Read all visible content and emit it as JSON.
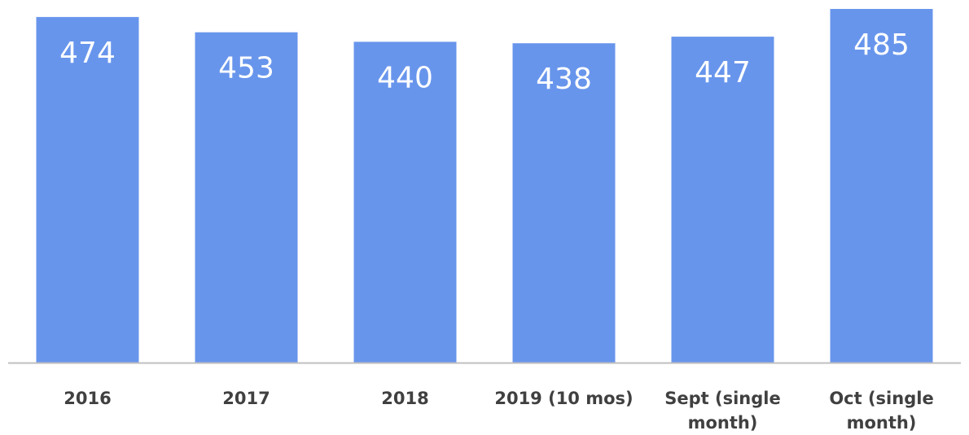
{
  "chart_data": {
    "type": "bar",
    "categories": [
      [
        "2016"
      ],
      [
        "2017"
      ],
      [
        "2018"
      ],
      [
        "2019 (10 mos)"
      ],
      [
        "Sept (single",
        "month)"
      ],
      [
        "Oct (single",
        "month)"
      ]
    ],
    "values": [
      474,
      453,
      440,
      438,
      447,
      485
    ],
    "data_labels": [
      "474",
      "453",
      "440",
      "438",
      "447",
      "485"
    ],
    "title": "",
    "xlabel": "",
    "ylabel": "",
    "ylim": [
      0,
      485
    ],
    "grid": false,
    "legend": "none",
    "bar_color": "#6895ec",
    "axis_color": "#bfbfbf",
    "label_color": "#404040",
    "data_label_color": "#ffffff"
  }
}
